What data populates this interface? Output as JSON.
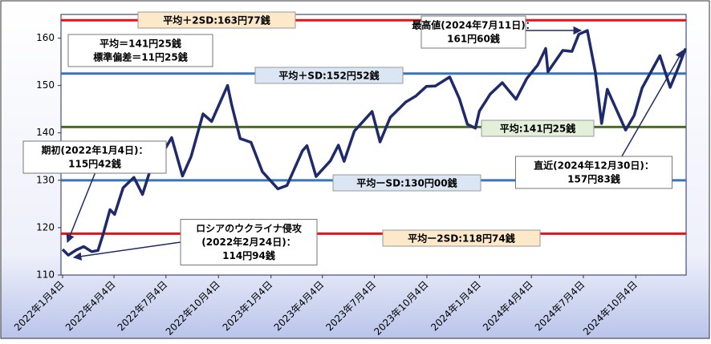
{
  "chart_data": {
    "type": "line",
    "x": [
      "2022-01-04",
      "2022-01-14",
      "2022-01-28",
      "2022-02-10",
      "2022-02-24",
      "2022-03-07",
      "2022-03-16",
      "2022-03-28",
      "2022-04-05",
      "2022-04-20",
      "2022-05-09",
      "2022-05-24",
      "2022-06-15",
      "2022-06-24",
      "2022-07-14",
      "2022-08-02",
      "2022-08-17",
      "2022-09-07",
      "2022-09-22",
      "2022-10-20",
      "2022-10-27",
      "2022-11-11",
      "2022-11-30",
      "2022-12-20",
      "2023-01-16",
      "2023-02-01",
      "2023-02-28",
      "2023-03-08",
      "2023-03-24",
      "2023-04-18",
      "2023-05-02",
      "2023-05-12",
      "2023-05-30",
      "2023-06-30",
      "2023-07-14",
      "2023-08-01",
      "2023-08-28",
      "2023-09-15",
      "2023-10-03",
      "2023-10-19",
      "2023-11-13",
      "2023-11-30",
      "2023-12-14",
      "2023-12-28",
      "2024-01-04",
      "2024-01-23",
      "2024-02-13",
      "2024-03-08",
      "2024-03-27",
      "2024-04-15",
      "2024-04-29",
      "2024-05-03",
      "2024-05-29",
      "2024-06-14",
      "2024-06-26",
      "2024-07-11",
      "2024-07-25",
      "2024-08-05",
      "2024-08-15",
      "2024-09-16",
      "2024-10-01",
      "2024-10-15",
      "2024-11-15",
      "2024-12-03",
      "2024-12-18",
      "2024-12-30"
    ],
    "series": [
      {
        "color": "#1f2a6b",
        "values": [
          115.42,
          114.2,
          115.3,
          116.0,
          114.94,
          115.2,
          118.6,
          123.8,
          122.8,
          128.4,
          130.6,
          127.0,
          135.4,
          134.9,
          139.0,
          130.9,
          135.0,
          144.0,
          142.4,
          150.0,
          146.0,
          138.8,
          138.0,
          131.8,
          128.2,
          128.9,
          136.2,
          137.3,
          130.8,
          134.1,
          137.4,
          134.0,
          140.4,
          144.5,
          138.1,
          143.3,
          146.5,
          147.8,
          149.8,
          149.9,
          151.8,
          147.2,
          141.8,
          141.0,
          144.6,
          148.2,
          150.6,
          147.1,
          151.5,
          154.3,
          157.8,
          152.9,
          157.4,
          157.2,
          160.8,
          161.6,
          152.8,
          142.0,
          149.2,
          140.6,
          143.7,
          149.5,
          156.3,
          149.6,
          154.0,
          157.83
        ]
      }
    ],
    "xlim": [
      "2022-01-04",
      "2024-12-31"
    ],
    "xticks": [
      {
        "value": "2022-01-04",
        "label": "2022年1月4日"
      },
      {
        "value": "2022-04-04",
        "label": "2022年4月4日"
      },
      {
        "value": "2022-07-04",
        "label": "2022年7月4日"
      },
      {
        "value": "2022-10-04",
        "label": "2022年10月4日"
      },
      {
        "value": "2023-01-04",
        "label": "2023年1月4日"
      },
      {
        "value": "2023-04-04",
        "label": "2023年4月4日"
      },
      {
        "value": "2023-07-04",
        "label": "2023年7月4日"
      },
      {
        "value": "2023-10-04",
        "label": "2023年10月4日"
      },
      {
        "value": "2024-01-04",
        "label": "2024年1月4日"
      },
      {
        "value": "2024-04-04",
        "label": "2024年4月4日"
      },
      {
        "value": "2024-07-04",
        "label": "2024年7月4日"
      },
      {
        "value": "2024-10-04",
        "label": "2024年10月4日"
      }
    ],
    "ylim": [
      110,
      165
    ],
    "yticks": [
      110,
      120,
      130,
      140,
      150,
      160
    ],
    "ref_lines": [
      {
        "label": "平均＋2SD:163円77銭",
        "value": 163.77,
        "color": "#e8101a",
        "box": "#fde9c9"
      },
      {
        "label": "平均＋SD:152円52銭",
        "value": 152.52,
        "color": "#3a74b8",
        "box": "#dbe6f4"
      },
      {
        "label": "平均:141円25銭",
        "value": 141.25,
        "color": "#4a6b22",
        "box": "#e3efd8"
      },
      {
        "label": "平均ーSD:130円00銭",
        "value": 130.0,
        "color": "#3a74b8",
        "box": "#dbe6f4"
      },
      {
        "label": "平均ー2SD:118円74銭",
        "value": 118.74,
        "color": "#e8101a",
        "box": "#fde9c9"
      }
    ],
    "annotations": [
      {
        "lines": [
          "平均＝141円25銭",
          "標準偏差＝11円25銭"
        ]
      },
      {
        "lines": [
          "最高値(2024年7月11日)：",
          "161円60銭"
        ]
      },
      {
        "lines": [
          "期初(2022年1月4日)：",
          "115円42銭"
        ]
      },
      {
        "lines": [
          "直近(2024年12月30日)：",
          "157円83銭"
        ]
      },
      {
        "lines": [
          "ロシアのウクライナ侵攻",
          "(2022年2月24日)：",
          "114円94銭"
        ]
      }
    ]
  }
}
